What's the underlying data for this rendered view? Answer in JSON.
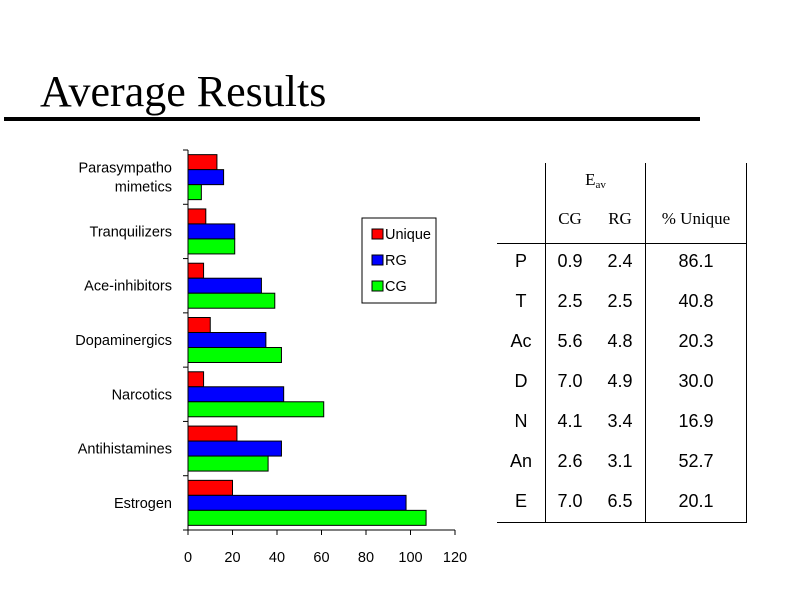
{
  "title": "Average Results",
  "chart_data": {
    "type": "bar",
    "orientation": "horizontal",
    "categories": [
      "Parasympatho\nmimetics",
      "Tranquilizers",
      "Ace-inhibitors",
      "Dopaminergics",
      "Narcotics",
      "Antihistamines",
      "Estrogen"
    ],
    "series": [
      {
        "name": "Unique",
        "color": "#ff0000",
        "values": [
          13,
          8,
          7,
          10,
          7,
          22,
          20
        ]
      },
      {
        "name": "RG",
        "color": "#0000ff",
        "values": [
          16,
          21,
          33,
          35,
          43,
          42,
          98
        ]
      },
      {
        "name": "CG",
        "color": "#00ff00",
        "values": [
          6,
          21,
          39,
          42,
          61,
          36,
          107
        ]
      }
    ],
    "xlim": [
      0,
      120
    ],
    "xticks": [
      0,
      20,
      40,
      60,
      80,
      100,
      120
    ],
    "legend": "right",
    "grid": false
  },
  "table": {
    "group_header": {
      "main": "E",
      "sub": "av"
    },
    "columns": [
      "CG",
      "RG",
      "% Unique"
    ],
    "rows": [
      {
        "label": "P",
        "cg": "0.9",
        "rg": "2.4",
        "unique": "86.1"
      },
      {
        "label": "T",
        "cg": "2.5",
        "rg": "2.5",
        "unique": "40.8"
      },
      {
        "label": "Ac",
        "cg": "5.6",
        "rg": "4.8",
        "unique": "20.3"
      },
      {
        "label": "D",
        "cg": "7.0",
        "rg": "4.9",
        "unique": "30.0"
      },
      {
        "label": "N",
        "cg": "4.1",
        "rg": "3.4",
        "unique": "16.9"
      },
      {
        "label": "An",
        "cg": "2.6",
        "rg": "3.1",
        "unique": "52.7"
      },
      {
        "label": "E",
        "cg": "7.0",
        "rg": "6.5",
        "unique": "20.1"
      }
    ]
  }
}
